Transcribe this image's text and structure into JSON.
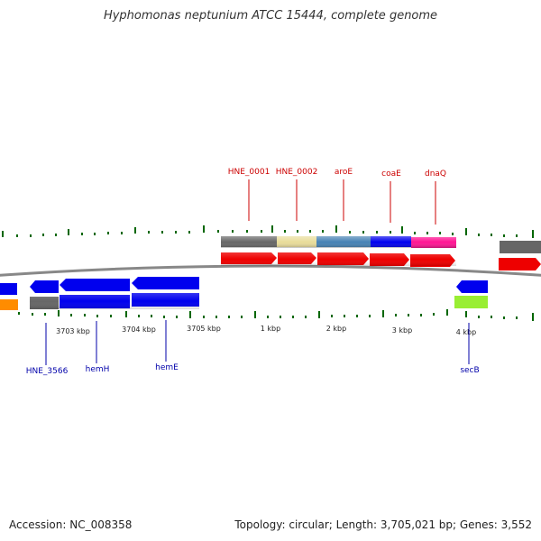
{
  "title": "Hyphomonas neptunium ATCC 15444, complete genome",
  "footer": {
    "accession": "Accession: NC_008358",
    "summary": "Topology: circular; Length: 3,705,021 bp; Genes: 3,552"
  },
  "tick_labels": [
    "3703 kbp",
    "3704 kbp",
    "3705 kbp",
    "1 kbp",
    "2 kbp",
    "3 kbp",
    "4 kbp"
  ],
  "gene_labels_top": [
    "HNE_0001",
    "HNE_0002",
    "aroE",
    "coaE",
    "dnaQ"
  ],
  "gene_labels_bottom": [
    "HNE_3566",
    "hemH",
    "hemE",
    "secB"
  ],
  "colors": {
    "label_top": "#cc0000",
    "label_bottom": "#0000aa",
    "tick": "#006600",
    "backbone": "#888888",
    "gene_red": "#ee0000",
    "gene_blue": "#0000ee",
    "gene_gray": "#666666",
    "gene_khaki": "#e8dc9a",
    "gene_steel": "#4682b4",
    "gene_magenta": "#ff1493",
    "gene_orange": "#ff8c00",
    "gene_lime": "#99ee33"
  }
}
